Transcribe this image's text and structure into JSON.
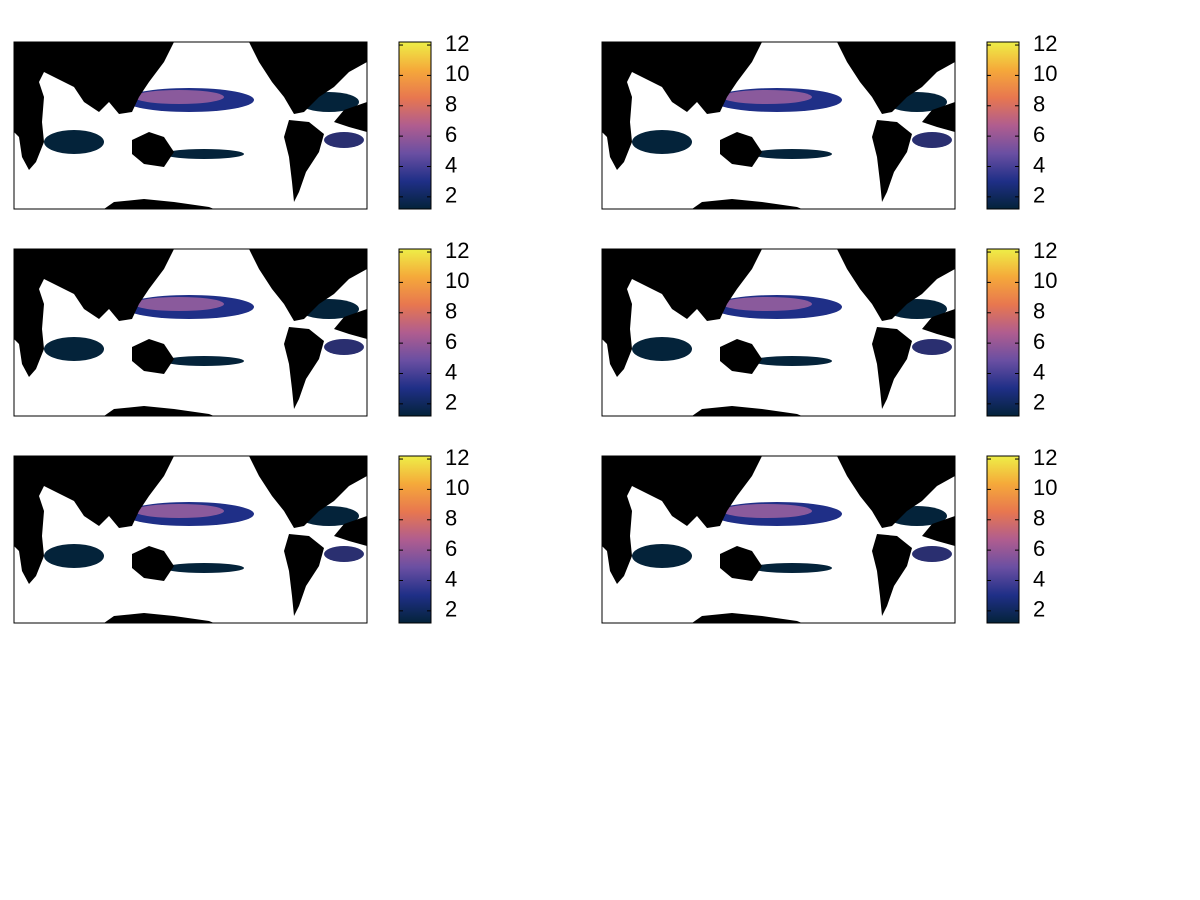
{
  "chart_data": [
    {
      "type": "map",
      "clim": [
        1.2,
        12.2
      ],
      "cticks": [
        2,
        4,
        6,
        8,
        10,
        12
      ],
      "colormap": [
        "#04233a",
        "#1f2f87",
        "#6a4fa2",
        "#b05d8f",
        "#e8774f",
        "#f5a93a",
        "#eeee47"
      ]
    },
    {
      "type": "map",
      "clim": [
        1.2,
        12.2
      ],
      "cticks": [
        2,
        4,
        6,
        8,
        10,
        12
      ],
      "colormap": [
        "#04233a",
        "#1f2f87",
        "#6a4fa2",
        "#b05d8f",
        "#e8774f",
        "#f5a93a",
        "#eeee47"
      ]
    },
    {
      "type": "map",
      "clim": [
        1.2,
        12.2
      ],
      "cticks": [
        2,
        4,
        6,
        8,
        10,
        12
      ],
      "colormap": [
        "#04233a",
        "#1f2f87",
        "#6a4fa2",
        "#b05d8f",
        "#e8774f",
        "#f5a93a",
        "#eeee47"
      ]
    },
    {
      "type": "map",
      "clim": [
        1.2,
        12.2
      ],
      "cticks": [
        2,
        4,
        6,
        8,
        10,
        12
      ],
      "colormap": [
        "#04233a",
        "#1f2f87",
        "#6a4fa2",
        "#b05d8f",
        "#e8774f",
        "#f5a93a",
        "#eeee47"
      ]
    },
    {
      "type": "map",
      "clim": [
        1.2,
        12.2
      ],
      "cticks": [
        2,
        4,
        6,
        8,
        10,
        12
      ],
      "colormap": [
        "#04233a",
        "#1f2f87",
        "#6a4fa2",
        "#b05d8f",
        "#e8774f",
        "#f5a93a",
        "#eeee47"
      ]
    },
    {
      "type": "map",
      "clim": [
        1.2,
        12.2
      ],
      "cticks": [
        2,
        4,
        6,
        8,
        10,
        12
      ],
      "colormap": [
        "#04233a",
        "#1f2f87",
        "#6a4fa2",
        "#b05d8f",
        "#e8774f",
        "#f5a93a",
        "#eeee47"
      ]
    }
  ]
}
